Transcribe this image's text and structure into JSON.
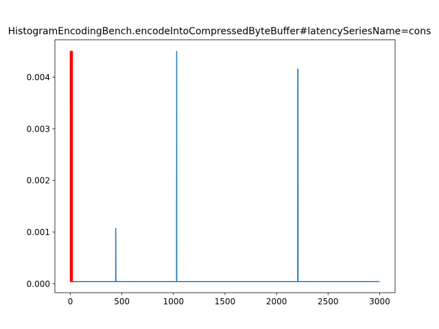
{
  "chart_data": {
    "type": "line",
    "title": "HistogramEncodingBench.encodeIntoCompressedByteBuffer#latencySeriesName=cons",
    "xlabel": "",
    "ylabel": "",
    "xlim": [
      -150,
      3150
    ],
    "ylim": [
      -0.000175,
      0.004725
    ],
    "grid": false,
    "x_ticks": [
      0,
      500,
      1000,
      1500,
      2000,
      2500,
      3000
    ],
    "y_ticks": [
      0.0,
      0.001,
      0.002,
      0.003,
      0.004
    ],
    "x_tick_labels": [
      "0",
      "500",
      "1000",
      "1500",
      "2000",
      "2500",
      "3000"
    ],
    "y_tick_labels": [
      "0.000",
      "0.001",
      "0.002",
      "0.003",
      "0.004"
    ],
    "series": [
      {
        "color": "#1f77b4",
        "points": [
          [
            0,
            0.0045
          ],
          [
            3,
            4e-05
          ],
          [
            440,
            4e-05
          ],
          [
            441,
            0.00107
          ],
          [
            442,
            4e-05
          ],
          [
            1030,
            4e-05
          ],
          [
            1031,
            0.0045
          ],
          [
            1032,
            4e-05
          ],
          [
            2205,
            4e-05
          ],
          [
            2206,
            0.00416
          ],
          [
            2208,
            0.00415
          ],
          [
            2209,
            4e-05
          ],
          [
            3000,
            4e-05
          ]
        ]
      },
      {
        "color": "#ff0000",
        "points": [
          [
            0,
            4e-05
          ],
          [
            0,
            0.0045
          ],
          [
            20,
            0.0045
          ],
          [
            20,
            4e-05
          ]
        ],
        "fill": true
      }
    ]
  }
}
